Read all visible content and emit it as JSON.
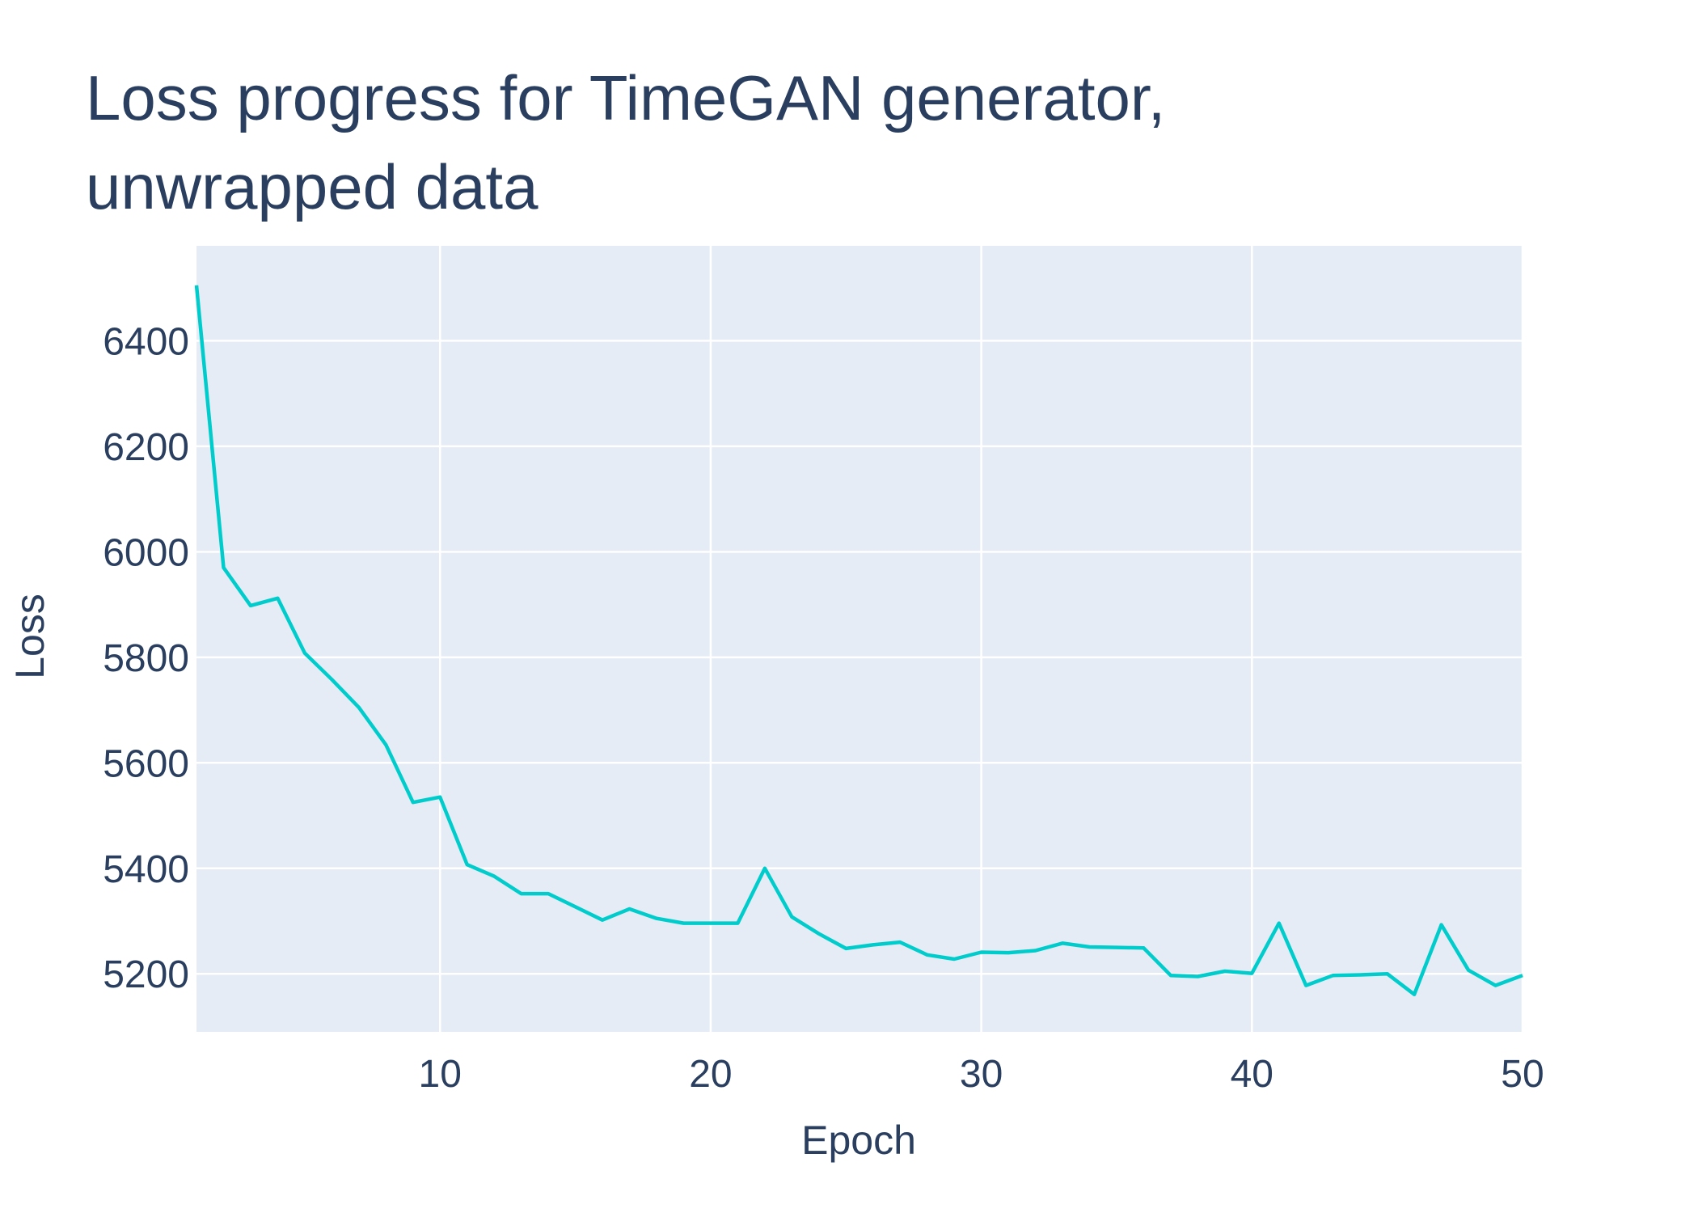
{
  "chart_data": {
    "type": "line",
    "title": [
      "Loss progress for TimeGAN generator,",
      "unwrapped data"
    ],
    "xlabel": "Epoch",
    "ylabel": "Loss",
    "xlim": [
      1,
      50
    ],
    "ylim": [
      5090,
      6580
    ],
    "x_ticks": [
      10,
      20,
      30,
      40,
      50
    ],
    "y_ticks": [
      5200,
      5400,
      5600,
      5800,
      6000,
      6200,
      6400
    ],
    "grid": true,
    "legend": "none",
    "series": [
      {
        "color": "#00cccc",
        "x": [
          1,
          2,
          3,
          4,
          5,
          6,
          7,
          8,
          9,
          10,
          11,
          12,
          13,
          14,
          15,
          16,
          17,
          18,
          19,
          20,
          21,
          22,
          23,
          24,
          25,
          26,
          27,
          28,
          29,
          30,
          31,
          32,
          33,
          34,
          35,
          36,
          37,
          38,
          39,
          40,
          41,
          42,
          43,
          44,
          45,
          46,
          47,
          48,
          49,
          50
        ],
        "values": [
          6505,
          5970,
          5898,
          5912,
          5808,
          5758,
          5705,
          5634,
          5525,
          5535,
          5407,
          5385,
          5352,
          5352,
          5327,
          5302,
          5323,
          5305,
          5296,
          5296,
          5296,
          5400,
          5308,
          5276,
          5248,
          5255,
          5260,
          5236,
          5228,
          5241,
          5240,
          5244,
          5258,
          5251,
          5250,
          5249,
          5197,
          5195,
          5205,
          5201,
          5296,
          5178,
          5197,
          5198,
          5200,
          5161,
          5293,
          5207,
          5178,
          5197
        ]
      }
    ]
  },
  "colors": {
    "plot_background": "#e5ecf6",
    "grid": "#ffffff",
    "text": "#2a3f5f",
    "line": "#00cccc"
  }
}
